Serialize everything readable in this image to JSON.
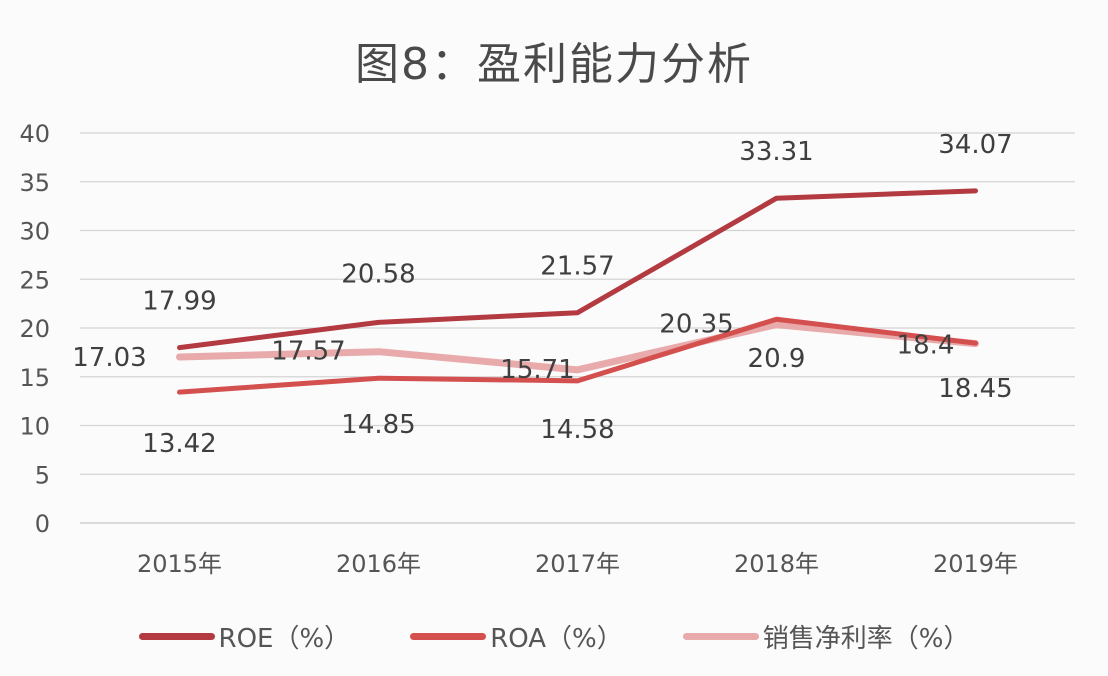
{
  "chart_data": {
    "type": "line",
    "title": "图8：盈利能力分析",
    "categories": [
      "2015年",
      "2016年",
      "2017年",
      "2018年",
      "2019年"
    ],
    "ylim": [
      0,
      40
    ],
    "yticks": [
      "0",
      "5",
      "10",
      "15",
      "20",
      "25",
      "30",
      "35",
      "40"
    ],
    "grid": true,
    "legend_position": "bottom",
    "series": [
      {
        "name": "ROE（%）",
        "color": "#b23a40",
        "values": [
          17.99,
          20.58,
          21.57,
          33.31,
          34.07
        ],
        "labels": [
          "17.99",
          "20.58",
          "21.57",
          "33.31",
          "34.07"
        ]
      },
      {
        "name": "ROA（%）",
        "color": "#d4504f",
        "values": [
          13.42,
          14.85,
          14.58,
          20.9,
          18.45
        ],
        "labels": [
          "13.42",
          "14.85",
          "14.58",
          "20.9",
          "18.45"
        ]
      },
      {
        "name": "销售净利率（%）",
        "color": "#e8aaaa",
        "values": [
          17.03,
          17.57,
          15.71,
          20.35,
          18.4
        ],
        "labels": [
          "17.03",
          "17.57",
          "15.71",
          "20.35",
          "18.4"
        ]
      }
    ]
  }
}
